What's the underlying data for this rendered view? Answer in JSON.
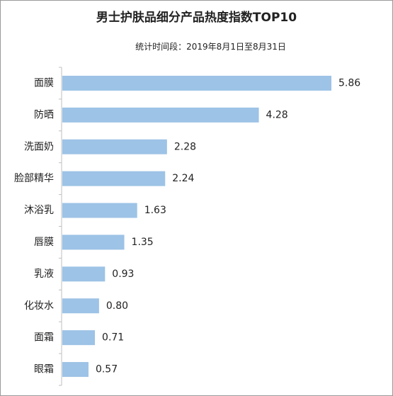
{
  "chart_data": {
    "type": "bar",
    "orientation": "horizontal",
    "title": "男士护肤品细分产品热度指数TOP10",
    "subtitle": "统计时间段：2019年8月1日至8月31日",
    "categories": [
      "面膜",
      "防晒",
      "洗面奶",
      "脸部精华",
      "沐浴乳",
      "唇膜",
      "乳液",
      "化妆水",
      "面霜",
      "眼霜"
    ],
    "values": [
      5.86,
      4.28,
      2.28,
      2.24,
      1.63,
      1.35,
      0.93,
      0.8,
      0.71,
      0.57
    ],
    "value_labels": [
      "5.86",
      "4.28",
      "2.28",
      "2.24",
      "1.63",
      "1.35",
      "0.93",
      "0.80",
      "0.71",
      "0.57"
    ],
    "xlim": [
      0,
      5.86
    ],
    "bar_color": "#9dc3e6",
    "axis_color": "#bfbfbf",
    "grid": false,
    "legend": "none"
  }
}
